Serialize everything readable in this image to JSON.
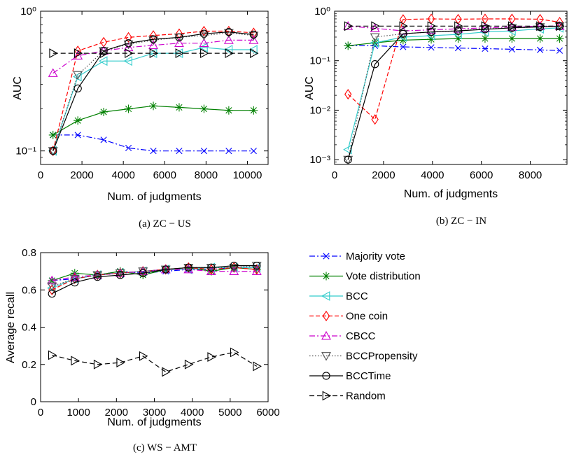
{
  "colors": {
    "majority": "#0000ff",
    "vote": "#008000",
    "bcc": "#33cccc",
    "onecoin": "#ff0000",
    "cbcc": "#cc00cc",
    "bccprop": "#505050",
    "bcctime": "#000000",
    "random": "#000000"
  },
  "legend": {
    "items": [
      {
        "key": "majority",
        "label": "Majority vote"
      },
      {
        "key": "vote",
        "label": "Vote distribution"
      },
      {
        "key": "bcc",
        "label": "BCC"
      },
      {
        "key": "onecoin",
        "label": "One coin"
      },
      {
        "key": "cbcc",
        "label": "CBCC"
      },
      {
        "key": "bccprop",
        "label": "BCCPropensity"
      },
      {
        "key": "bcctime",
        "label": "BCCTime"
      },
      {
        "key": "random",
        "label": "Random"
      }
    ]
  },
  "chart_data": [
    {
      "id": "a",
      "type": "line",
      "caption": "(a) ZC − US",
      "xlabel": "Num. of judgments",
      "ylabel": "AUC",
      "yscale": "log",
      "xlim": [
        0,
        11000
      ],
      "ylim": [
        0.08,
        1
      ],
      "xticks": [
        0,
        2000,
        4000,
        6000,
        8000,
        10000
      ],
      "xtick_labels": [
        "0",
        "2000",
        "4000",
        "6000",
        "8000",
        "10000"
      ],
      "yticks": [
        0.1,
        1
      ],
      "ytick_labels": [
        "10⁻¹",
        "10⁰"
      ],
      "x": [
        600,
        1800,
        3050,
        4250,
        5450,
        6700,
        7900,
        9100,
        10300
      ],
      "series": [
        {
          "key": "majority",
          "values": [
            0.13,
            0.13,
            0.12,
            0.105,
            0.1,
            0.1,
            0.1,
            0.1,
            0.1
          ]
        },
        {
          "key": "vote",
          "values": [
            0.13,
            0.165,
            0.19,
            0.2,
            0.21,
            0.205,
            0.2,
            0.195,
            0.195
          ]
        },
        {
          "key": "bcc",
          "values": [
            0.1,
            0.34,
            0.44,
            0.44,
            0.5,
            0.5,
            0.55,
            0.53,
            0.53
          ]
        },
        {
          "key": "onecoin",
          "values": [
            0.1,
            0.52,
            0.6,
            0.65,
            0.67,
            0.69,
            0.72,
            0.72,
            0.7
          ]
        },
        {
          "key": "cbcc",
          "values": [
            0.36,
            0.48,
            0.52,
            0.55,
            0.57,
            0.59,
            0.59,
            0.62,
            0.62
          ]
        },
        {
          "key": "bccprop",
          "values": [
            0.1,
            0.35,
            0.52,
            0.58,
            0.62,
            0.65,
            0.67,
            0.7,
            0.67
          ]
        },
        {
          "key": "bcctime",
          "values": [
            0.1,
            0.28,
            0.52,
            0.59,
            0.63,
            0.65,
            0.69,
            0.71,
            0.68
          ]
        },
        {
          "key": "random",
          "values": [
            0.5,
            0.5,
            0.5,
            0.5,
            0.5,
            0.5,
            0.5,
            0.5,
            0.5
          ]
        }
      ]
    },
    {
      "id": "b",
      "type": "line",
      "caption": "(b) ZC − IN",
      "xlabel": "Num. of judgments",
      "ylabel": "AUC",
      "yscale": "log",
      "xlim": [
        0,
        9500
      ],
      "ylim": [
        0.0008,
        1
      ],
      "xticks": [
        0,
        2000,
        4000,
        6000,
        8000
      ],
      "xtick_labels": [
        "0",
        "2000",
        "4000",
        "6000",
        "8000"
      ],
      "yticks": [
        0.001,
        0.01,
        0.1,
        1
      ],
      "ytick_labels": [
        "10⁻³",
        "10⁻²",
        "10⁻¹",
        "10⁰"
      ],
      "x": [
        550,
        1650,
        2800,
        3950,
        5050,
        6150,
        7250,
        8400,
        9200
      ],
      "series": [
        {
          "key": "majority",
          "values": [
            0.2,
            0.2,
            0.19,
            0.185,
            0.18,
            0.175,
            0.17,
            0.165,
            0.16
          ]
        },
        {
          "key": "vote",
          "values": [
            0.2,
            0.23,
            0.26,
            0.27,
            0.28,
            0.28,
            0.28,
            0.28,
            0.28
          ]
        },
        {
          "key": "bcc",
          "values": [
            0.0016,
            0.23,
            0.3,
            0.32,
            0.34,
            0.38,
            0.4,
            0.44,
            0.46
          ]
        },
        {
          "key": "onecoin",
          "values": [
            0.021,
            0.0065,
            0.68,
            0.7,
            0.69,
            0.7,
            0.7,
            0.69,
            0.6
          ]
        },
        {
          "key": "cbcc",
          "values": [
            0.5,
            0.45,
            0.4,
            0.42,
            0.44,
            0.46,
            0.48,
            0.5,
            0.5
          ]
        },
        {
          "key": "bccprop",
          "values": [
            0.001,
            0.3,
            0.35,
            0.38,
            0.4,
            0.44,
            0.46,
            0.48,
            0.5
          ]
        },
        {
          "key": "bcctime",
          "values": [
            0.001,
            0.085,
            0.35,
            0.38,
            0.4,
            0.43,
            0.46,
            0.48,
            0.5
          ]
        },
        {
          "key": "random",
          "values": [
            0.5,
            0.5,
            0.5,
            0.5,
            0.5,
            0.5,
            0.5,
            0.5,
            0.5
          ]
        }
      ]
    },
    {
      "id": "c",
      "type": "line",
      "caption": "(c) WS − AMT",
      "xlabel": "Num. of judgments",
      "ylabel": "Average recall",
      "yscale": "linear",
      "xlim": [
        0,
        6000
      ],
      "ylim": [
        0,
        0.8
      ],
      "xticks": [
        0,
        1000,
        2000,
        3000,
        4000,
        5000,
        6000
      ],
      "xtick_labels": [
        "0",
        "1000",
        "2000",
        "3000",
        "4000",
        "5000",
        "6000"
      ],
      "yticks": [
        0,
        0.2,
        0.4,
        0.6,
        0.8
      ],
      "ytick_labels": [
        "0",
        "0.2",
        "0.4",
        "0.6",
        "0.8"
      ],
      "x": [
        300,
        900,
        1500,
        2100,
        2700,
        3300,
        3900,
        4500,
        5100,
        5700
      ],
      "series": [
        {
          "key": "majority",
          "values": [
            0.65,
            0.66,
            0.68,
            0.7,
            0.69,
            0.7,
            0.71,
            0.71,
            0.72,
            0.72
          ]
        },
        {
          "key": "vote",
          "values": [
            0.65,
            0.69,
            0.68,
            0.7,
            0.68,
            0.71,
            0.72,
            0.7,
            0.72,
            0.71
          ]
        },
        {
          "key": "bcc",
          "values": [
            0.61,
            0.66,
            0.68,
            0.69,
            0.7,
            0.71,
            0.71,
            0.72,
            0.72,
            0.72
          ]
        },
        {
          "key": "onecoin",
          "values": [
            0.6,
            0.66,
            0.68,
            0.69,
            0.7,
            0.71,
            0.72,
            0.71,
            0.72,
            0.71
          ]
        },
        {
          "key": "cbcc",
          "values": [
            0.65,
            0.67,
            0.68,
            0.69,
            0.7,
            0.71,
            0.71,
            0.7,
            0.7,
            0.7
          ]
        },
        {
          "key": "bccprop",
          "values": [
            0.62,
            0.66,
            0.68,
            0.69,
            0.7,
            0.71,
            0.72,
            0.72,
            0.72,
            0.73
          ]
        },
        {
          "key": "bcctime",
          "values": [
            0.58,
            0.64,
            0.67,
            0.68,
            0.69,
            0.71,
            0.72,
            0.72,
            0.73,
            0.73
          ]
        },
        {
          "key": "random",
          "values": [
            0.25,
            0.22,
            0.2,
            0.21,
            0.245,
            0.16,
            0.2,
            0.24,
            0.265,
            0.19
          ]
        }
      ]
    }
  ]
}
